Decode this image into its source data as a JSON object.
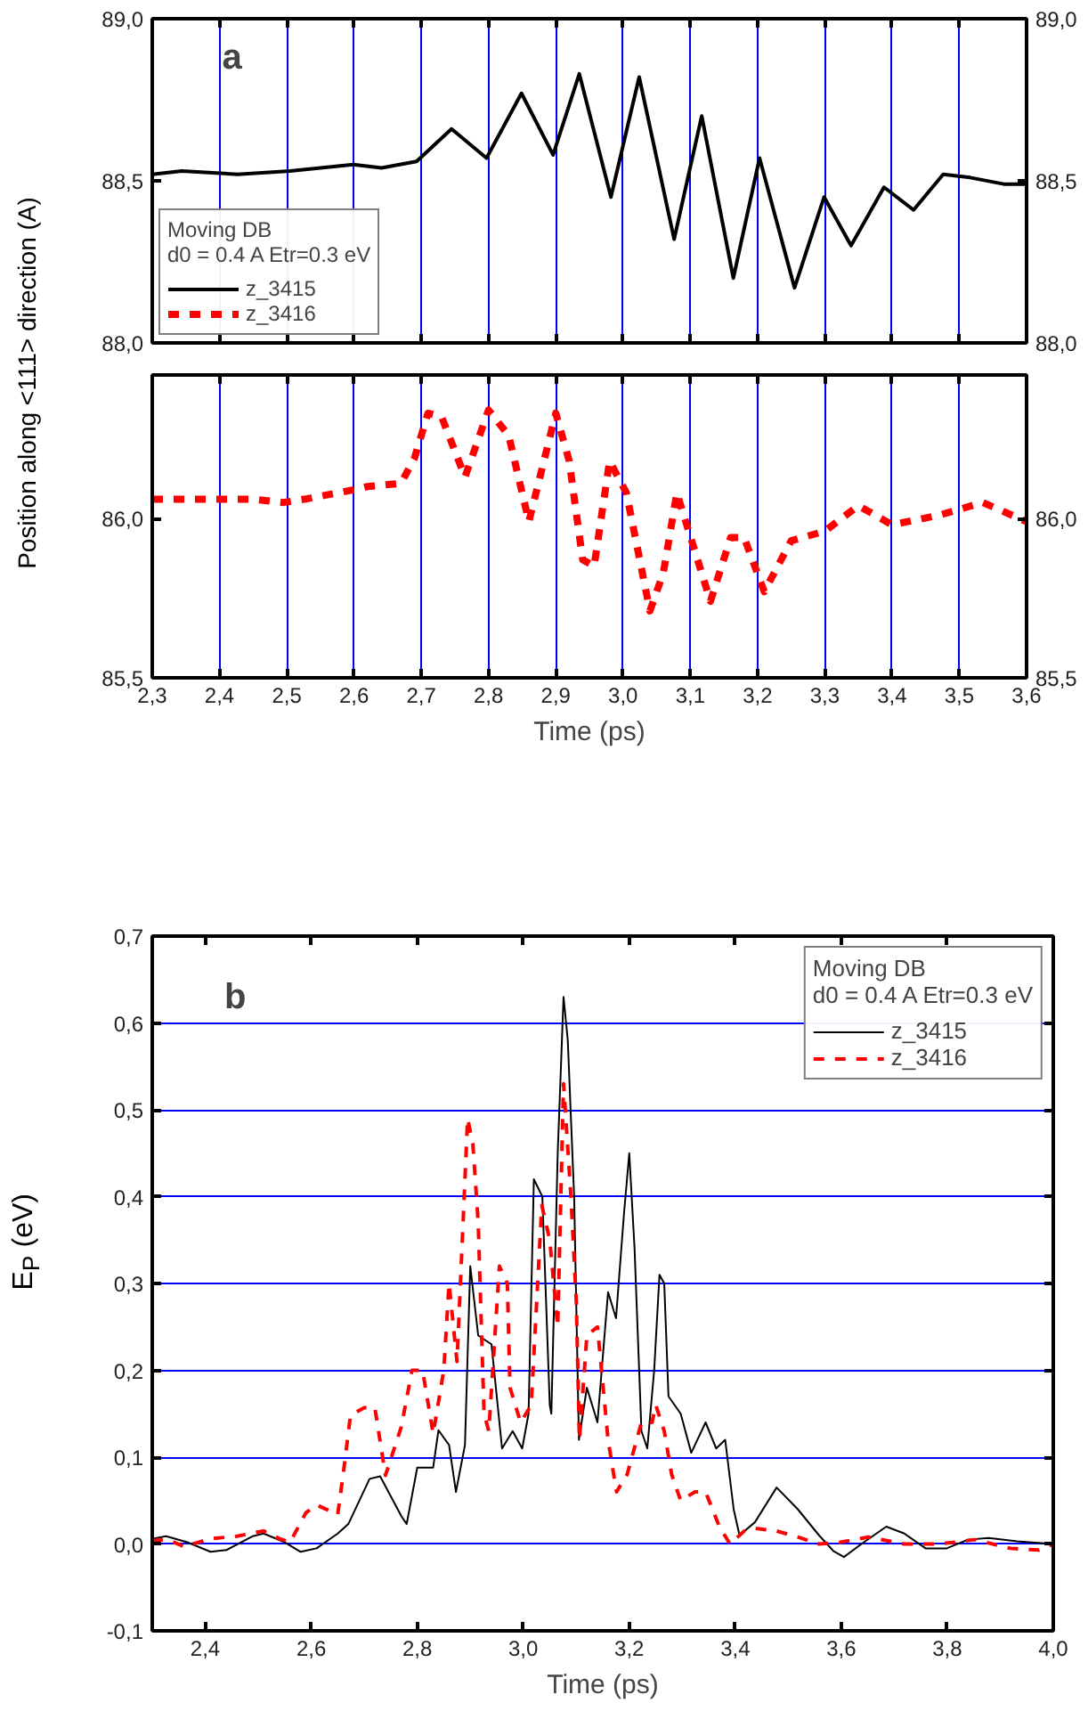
{
  "chart_data": [
    {
      "type": "line",
      "ylabel": "Position along <111> direction (A)",
      "annotations": [
        "a"
      ],
      "legend_title": "Moving DB\nd0 = 0.4 A Etr=0.3 eV",
      "legend": "bottom left",
      "grid": "x",
      "tick_labels": "y",
      "xlim": [
        2.3,
        3.6
      ],
      "xticks": [
        {
          "value": 2.3,
          "label": null
        },
        {
          "value": 2.4,
          "label": null
        },
        {
          "value": 2.5,
          "label": null
        },
        {
          "value": 2.6,
          "label": null
        },
        {
          "value": 2.7,
          "label": null
        },
        {
          "value": 2.8,
          "label": null
        },
        {
          "value": 2.9,
          "label": null
        },
        {
          "value": 3.0,
          "label": null
        },
        {
          "value": 3.1,
          "label": null
        },
        {
          "value": 3.2,
          "label": null
        },
        {
          "value": 3.3,
          "label": null
        },
        {
          "value": 3.4,
          "label": null
        },
        {
          "value": 3.5,
          "label": null
        },
        {
          "value": 3.6,
          "label": null
        }
      ],
      "ylim": [
        88.0,
        89.0
      ],
      "yticks": [
        {
          "value": 88.0,
          "label": "88,0"
        },
        {
          "value": 88.5,
          "label": "88,5"
        },
        {
          "value": 89.0,
          "label": "89,0"
        }
      ],
      "y2lim": [
        88.0,
        89.0
      ],
      "y2ticks": [
        {
          "value": 88.0,
          "label": "88,0"
        },
        {
          "value": 88.5,
          "label": "88,5"
        },
        {
          "value": 89.0,
          "label": "89,0"
        }
      ],
      "series": [
        {
          "name": "z_3415",
          "color": "#000000",
          "line_style": "solid",
          "x": [
            2.3,
            2.344,
            2.427,
            2.505,
            2.599,
            2.641,
            2.693,
            2.745,
            2.797,
            2.849,
            2.896,
            2.935,
            2.982,
            3.024,
            3.076,
            3.117,
            3.164,
            3.203,
            3.255,
            3.299,
            3.339,
            3.388,
            3.432,
            3.476,
            3.516,
            3.566,
            3.6
          ],
          "values": [
            88.52,
            88.53,
            88.52,
            88.53,
            88.55,
            88.54,
            88.56,
            88.66,
            88.57,
            88.77,
            88.58,
            88.83,
            88.45,
            88.82,
            88.32,
            88.7,
            88.2,
            88.57,
            88.17,
            88.45,
            88.3,
            88.48,
            88.41,
            88.52,
            88.51,
            88.49,
            88.49
          ]
        }
      ]
    },
    {
      "type": "line",
      "xlabel": "Time (ps)",
      "legend": "top",
      "grid": "x",
      "xlim": [
        2.3,
        3.6
      ],
      "xticks": [
        {
          "value": 2.3,
          "label": "2,3"
        },
        {
          "value": 2.4,
          "label": "2,4"
        },
        {
          "value": 2.5,
          "label": "2,5"
        },
        {
          "value": 2.6,
          "label": "2,6"
        },
        {
          "value": 2.7,
          "label": "2,7"
        },
        {
          "value": 2.8,
          "label": "2,8"
        },
        {
          "value": 2.9,
          "label": "2,9"
        },
        {
          "value": 3.0,
          "label": "3,0"
        },
        {
          "value": 3.1,
          "label": "3,1"
        },
        {
          "value": 3.2,
          "label": "3,2"
        },
        {
          "value": 3.3,
          "label": "3,3"
        },
        {
          "value": 3.4,
          "label": "3,4"
        },
        {
          "value": 3.5,
          "label": "3,5"
        },
        {
          "value": 3.6,
          "label": "3,6"
        }
      ],
      "ylim": [
        85.5,
        86.45
      ],
      "yticks": [
        {
          "value": 85.5,
          "label": "85,5"
        },
        {
          "value": 86.0,
          "label": "86,0"
        }
      ],
      "y2lim": [
        85.5,
        86.45
      ],
      "y2ticks": [
        {
          "value": 85.5,
          "label": "85,5"
        },
        {
          "value": 86.0,
          "label": "86,0"
        }
      ],
      "series": [
        {
          "name": "z_3416",
          "color": "#ff0000",
          "line_style": "dashed",
          "x": [
            2.3,
            2.4,
            2.45,
            2.495,
            2.526,
            2.6,
            2.62,
            2.67,
            2.69,
            2.71,
            2.73,
            2.765,
            2.8,
            2.83,
            2.86,
            2.9,
            2.92,
            2.94,
            2.957,
            2.98,
            3.005,
            3.04,
            3.06,
            3.08,
            3.13,
            3.16,
            3.18,
            3.21,
            3.25,
            3.3,
            3.35,
            3.4,
            3.47,
            3.535,
            3.6
          ],
          "values": [
            86.06,
            86.06,
            86.06,
            86.05,
            86.06,
            86.09,
            86.1,
            86.11,
            86.19,
            86.33,
            86.32,
            86.13,
            86.34,
            86.26,
            85.99,
            86.33,
            86.18,
            85.87,
            85.85,
            86.18,
            86.08,
            85.71,
            85.83,
            86.08,
            85.74,
            85.94,
            85.94,
            85.77,
            85.93,
            85.96,
            86.04,
            85.98,
            86.01,
            86.05,
            85.99
          ]
        }
      ]
    },
    {
      "type": "line",
      "xlabel": "Time (ps)",
      "ylabel": "E$_{P}$ (eV)",
      "annotations": [
        "b"
      ],
      "legend_title": "Moving DB\nd0 = 0.4 A Etr=0.3 eV",
      "legend": "top right",
      "grid": "y",
      "xlim": [
        2.3,
        4.0
      ],
      "xticks": [
        {
          "value": 2.4,
          "label": "2,4"
        },
        {
          "value": 2.6,
          "label": "2,6"
        },
        {
          "value": 2.8,
          "label": "2,8"
        },
        {
          "value": 3.0,
          "label": "3,0"
        },
        {
          "value": 3.2,
          "label": "3,2"
        },
        {
          "value": 3.4,
          "label": "3,4"
        },
        {
          "value": 3.6,
          "label": "3,6"
        },
        {
          "value": 3.8,
          "label": "3,8"
        },
        {
          "value": 4.0,
          "label": "4,0"
        }
      ],
      "ylim": [
        -0.1,
        0.7
      ],
      "yticks": [
        {
          "value": -0.1,
          "label": "-0,1"
        },
        {
          "value": 0.0,
          "label": "0,0"
        },
        {
          "value": 0.1,
          "label": "0,1"
        },
        {
          "value": 0.2,
          "label": "0,2"
        },
        {
          "value": 0.3,
          "label": "0,3"
        },
        {
          "value": 0.4,
          "label": "0,4"
        },
        {
          "value": 0.5,
          "label": "0,5"
        },
        {
          "value": 0.6,
          "label": "0,6"
        },
        {
          "value": 0.7,
          "label": "0,7"
        }
      ],
      "series": [
        {
          "name": "z_3415",
          "color": "#000000",
          "line_style": "solid",
          "x": [
            2.3,
            2.326,
            2.366,
            2.41,
            2.44,
            2.49,
            2.51,
            2.55,
            2.58,
            2.61,
            2.65,
            2.67,
            2.71,
            2.73,
            2.77,
            2.78,
            2.8,
            2.83,
            2.84,
            2.86,
            2.873,
            2.89,
            2.9,
            2.915,
            2.94,
            2.96,
            2.98,
            2.998,
            3.01,
            3.02,
            3.036,
            3.05,
            3.053,
            3.065,
            3.076,
            3.084,
            3.096,
            3.105,
            3.12,
            3.14,
            3.16,
            3.175,
            3.19,
            3.2,
            3.21,
            3.223,
            3.234,
            3.247,
            3.257,
            3.266,
            3.274,
            3.297,
            3.317,
            3.344,
            3.364,
            3.381,
            3.397,
            3.408,
            3.437,
            3.478,
            3.518,
            3.558,
            3.585,
            3.605,
            3.638,
            3.685,
            3.719,
            3.759,
            3.799,
            3.839,
            3.878,
            3.932,
            4.0
          ],
          "values": [
            0.006,
            0.009,
            0.002,
            -0.009,
            -0.007,
            0.009,
            0.012,
            0.002,
            -0.009,
            -0.005,
            0.012,
            0.023,
            0.075,
            0.078,
            0.032,
            0.023,
            0.088,
            0.088,
            0.131,
            0.114,
            0.06,
            0.114,
            0.32,
            0.24,
            0.23,
            0.11,
            0.13,
            0.11,
            0.15,
            0.42,
            0.4,
            0.16,
            0.15,
            0.45,
            0.63,
            0.58,
            0.4,
            0.12,
            0.18,
            0.14,
            0.29,
            0.26,
            0.38,
            0.45,
            0.34,
            0.13,
            0.11,
            0.2,
            0.31,
            0.3,
            0.17,
            0.15,
            0.105,
            0.14,
            0.11,
            0.12,
            0.04,
            0.01,
            0.025,
            0.065,
            0.04,
            0.01,
            -0.008,
            -0.015,
            0.0,
            0.02,
            0.012,
            -0.005,
            -0.005,
            0.005,
            0.007,
            0.003,
            0.0
          ]
        },
        {
          "name": "z_3416",
          "color": "#ff0000",
          "line_style": "dashed",
          "x": [
            2.3,
            2.33,
            2.36,
            2.41,
            2.46,
            2.51,
            2.54,
            2.56,
            2.59,
            2.61,
            2.65,
            2.66,
            2.674,
            2.7,
            2.72,
            2.74,
            2.77,
            2.79,
            2.81,
            2.83,
            2.85,
            2.86,
            2.875,
            2.895,
            2.905,
            2.915,
            2.926,
            2.935,
            2.955,
            2.97,
            2.975,
            2.995,
            3.015,
            3.035,
            3.05,
            3.065,
            3.076,
            3.09,
            3.1,
            3.106,
            3.12,
            3.14,
            3.16,
            3.176,
            3.196,
            3.223,
            3.243,
            3.25,
            3.266,
            3.28,
            3.297,
            3.324,
            3.344,
            3.37,
            3.39,
            3.417,
            3.437,
            3.478,
            3.518,
            3.558,
            3.598,
            3.651,
            3.719,
            3.786,
            3.852,
            3.919,
            3.973,
            4.0
          ],
          "values": [
            0.004,
            0.005,
            -0.003,
            0.006,
            0.009,
            0.015,
            0.006,
            0.002,
            0.036,
            0.045,
            0.034,
            0.079,
            0.148,
            0.157,
            0.157,
            0.079,
            0.135,
            0.2,
            0.2,
            0.127,
            0.2,
            0.3,
            0.21,
            0.49,
            0.46,
            0.37,
            0.15,
            0.13,
            0.32,
            0.3,
            0.18,
            0.14,
            0.16,
            0.39,
            0.35,
            0.25,
            0.53,
            0.4,
            0.28,
            0.12,
            0.24,
            0.25,
            0.12,
            0.06,
            0.08,
            0.14,
            0.14,
            0.16,
            0.13,
            0.08,
            0.05,
            0.06,
            0.06,
            0.02,
            0.0,
            0.015,
            0.018,
            0.015,
            0.008,
            0.0,
            0.002,
            0.008,
            0.0,
            0.0,
            0.005,
            -0.005,
            -0.007,
            0.0
          ]
        }
      ]
    }
  ]
}
